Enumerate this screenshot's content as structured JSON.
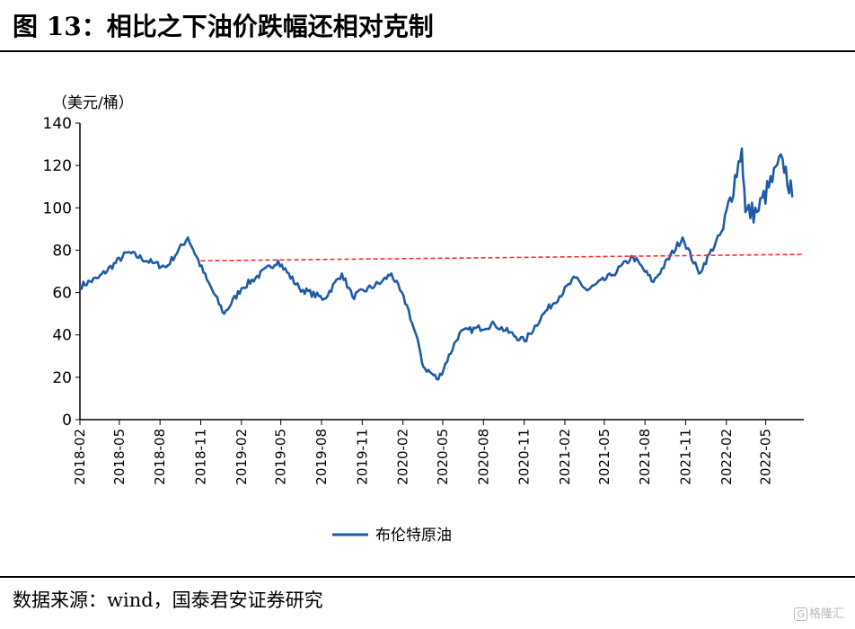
{
  "title": "图  13：相比之下油价跌幅还相对克制",
  "source": "数据来源：wind，国泰君安证券研究",
  "watermark": {
    "icon": "gelonghui-logo-icon",
    "text": "格隆汇"
  },
  "colors": {
    "series": "#1f5aa6",
    "reference": "#ff2a2a",
    "axis": "#000000"
  },
  "chart_data": {
    "type": "line",
    "ylabel": "（美元/桶）",
    "ylim": [
      0,
      140
    ],
    "yticks": [
      0,
      20,
      40,
      60,
      80,
      100,
      120,
      140
    ],
    "xticks": [
      "2018-02",
      "2018-05",
      "2018-08",
      "2018-11",
      "2019-02",
      "2019-05",
      "2019-08",
      "2019-11",
      "2020-02",
      "2020-05",
      "2020-08",
      "2020-11",
      "2021-02",
      "2021-05",
      "2021-08",
      "2021-11",
      "2022-02",
      "2022-05"
    ],
    "grid": false,
    "legend_position": "bottom-center",
    "series": [
      {
        "name": "布伦特原油",
        "style": "solid",
        "x": [
          "2018-02-01",
          "2018-03-15",
          "2018-05-20",
          "2018-07-15",
          "2018-08-15",
          "2018-10-03",
          "2018-11-15",
          "2018-12-24",
          "2019-02-01",
          "2019-04-25",
          "2019-06-12",
          "2019-08-07",
          "2019-09-16",
          "2019-10-10",
          "2019-12-15",
          "2020-01-06",
          "2020-02-10",
          "2020-03-09",
          "2020-03-18",
          "2020-04-21",
          "2020-06-08",
          "2020-08-26",
          "2020-11-02",
          "2020-12-15",
          "2021-02-25",
          "2021-03-23",
          "2021-05-17",
          "2021-07-05",
          "2021-08-20",
          "2021-10-25",
          "2021-12-01",
          "2022-01-25",
          "2022-03-08",
          "2022-03-16",
          "2022-04-11",
          "2022-06-08",
          "2022-06-30"
        ],
        "y": [
          63,
          67,
          79,
          74,
          72,
          86,
          66,
          50,
          62,
          75,
          62,
          57,
          69,
          58,
          65,
          69,
          54,
          34,
          25,
          19,
          41,
          45,
          37,
          50,
          67,
          61,
          68,
          77,
          65,
          86,
          69,
          90,
          128,
          98,
          98,
          123,
          105
        ]
      },
      {
        "name": "",
        "style": "dashed",
        "x": [
          "2018-11-01",
          "2022-07-26"
        ],
        "y": [
          75,
          78
        ]
      }
    ]
  }
}
